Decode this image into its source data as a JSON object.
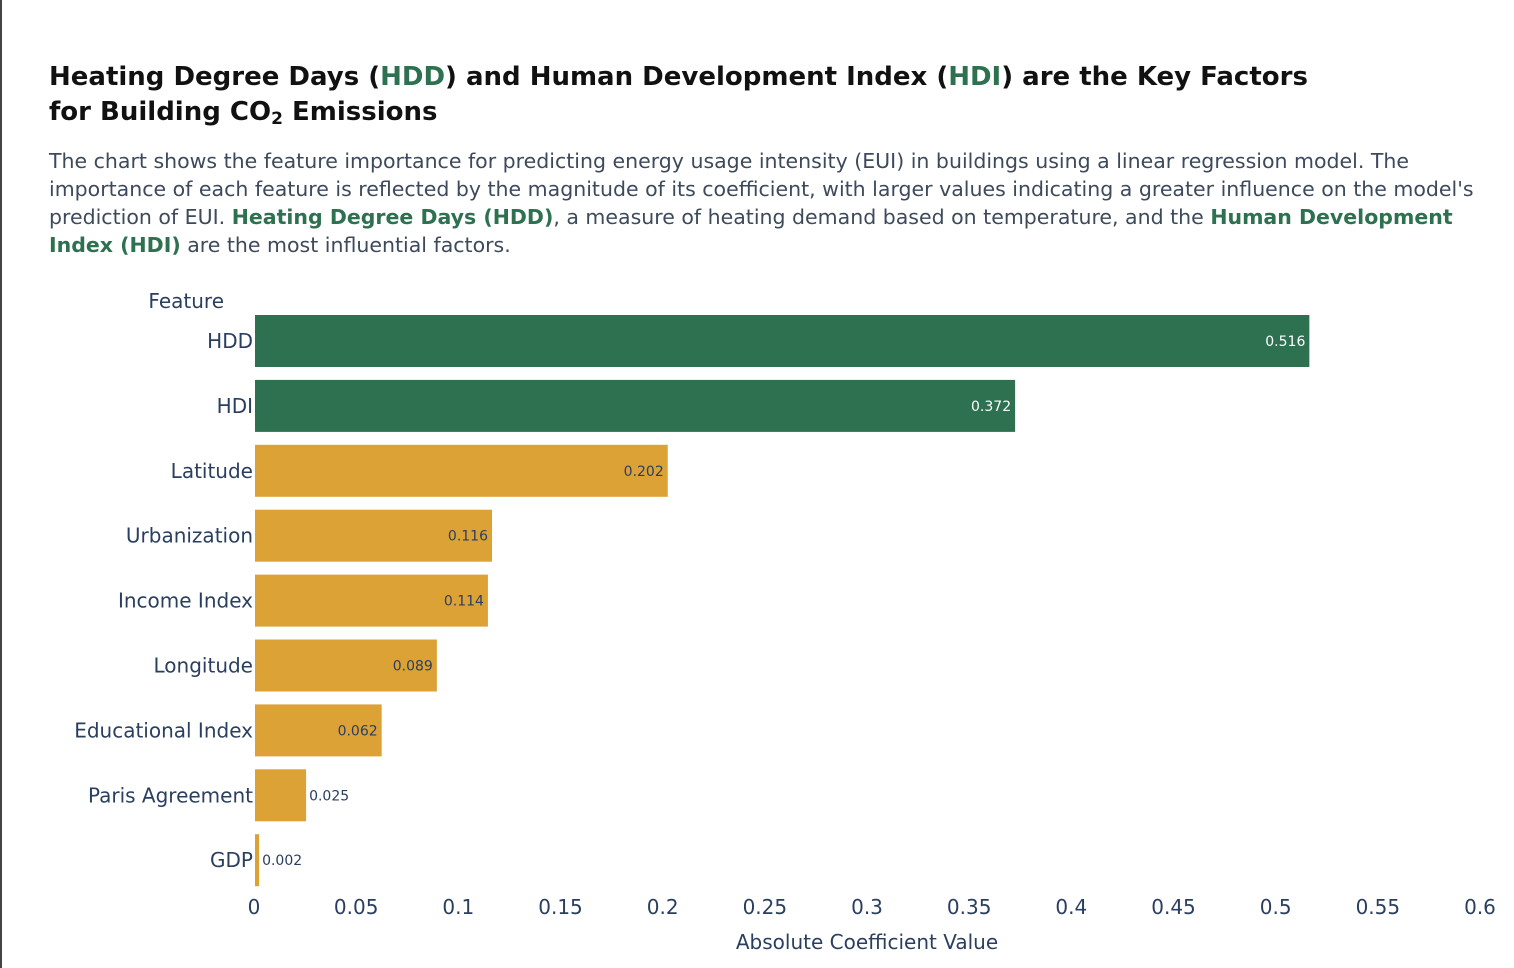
{
  "header": {
    "title_parts": {
      "p1": "Heating Degree Days (",
      "p2": "HDD",
      "p3": ") and Human Development Index (",
      "p4": "HDI",
      "p5": ") are the Key Factors",
      "p6": "for Building CO",
      "p7": "2",
      "p8": " Emissions"
    },
    "subtitle_parts": {
      "s1": "The chart shows the feature importance for predicting energy usage intensity (EUI) in buildings using a linear regression model. The importance of each feature is reflected by the magnitude of its coefficient, with larger values indicating a greater influence on the model's prediction of EUI. ",
      "s2": "Heating Degree Days (HDD)",
      "s3": ", a measure of heating demand based on temperature, and the ",
      "s4": "Human Development Index (HDI)",
      "s5": " are the most influential factors."
    }
  },
  "colors": {
    "highlight": "#2e7150",
    "default_bar": "#dda236",
    "highlight_label": "#ffffff",
    "default_label": "#2a3f5f"
  },
  "chart_data": {
    "type": "bar",
    "orientation": "horizontal",
    "ylabel": "Feature",
    "xlabel": "Absolute Coefficient Value",
    "xlim": [
      0,
      0.6
    ],
    "xticks": [
      "0",
      "0.05",
      "0.1",
      "0.15",
      "0.2",
      "0.25",
      "0.3",
      "0.35",
      "0.4",
      "0.45",
      "0.5",
      "0.55",
      "0.6"
    ],
    "grid": false,
    "categories": [
      "HDD",
      "HDI",
      "Latitude",
      "Urbanization",
      "Income Index",
      "Longitude",
      "Educational Index",
      "Paris Agreement",
      "GDP"
    ],
    "values": [
      0.516,
      0.372,
      0.202,
      0.116,
      0.114,
      0.089,
      0.062,
      0.025,
      0.002
    ],
    "data_labels": [
      "0.516",
      "0.372",
      "0.202",
      "0.116",
      "0.114",
      "0.089",
      "0.062",
      "0.025",
      "0.002"
    ],
    "highlighted": [
      "HDD",
      "HDI"
    ]
  }
}
